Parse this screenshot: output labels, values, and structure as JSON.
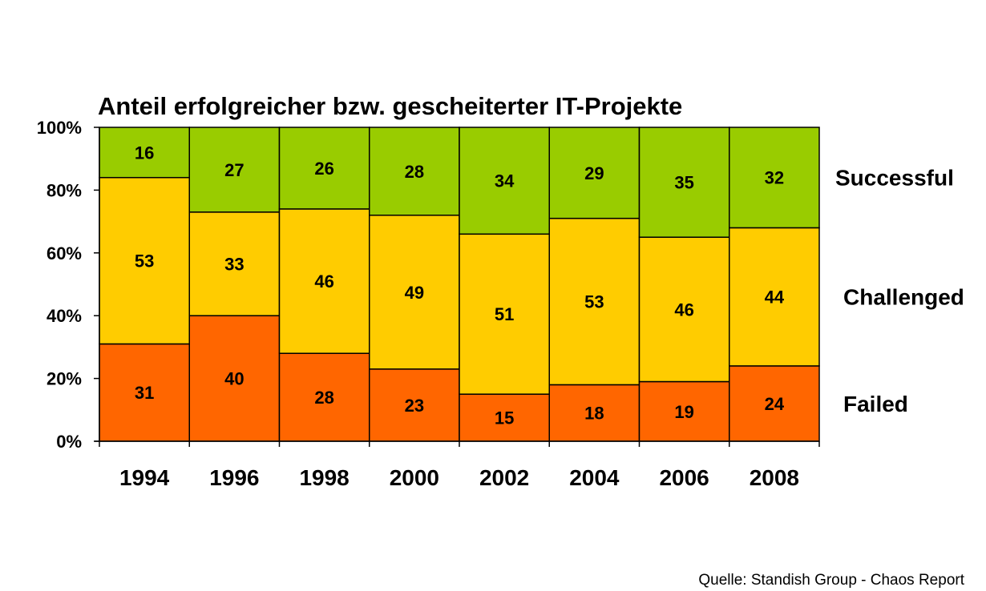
{
  "chart_data": {
    "type": "bar",
    "stacked": true,
    "title": "Anteil erfolgreicher bzw. gescheiterter IT-Projekte",
    "categories": [
      "1994",
      "1996",
      "1998",
      "2000",
      "2002",
      "2004",
      "2006",
      "2008"
    ],
    "series": [
      {
        "name": "Failed",
        "color": "#ff6600",
        "values": [
          31,
          40,
          28,
          23,
          15,
          18,
          19,
          24
        ]
      },
      {
        "name": "Challenged",
        "color": "#ffcc00",
        "values": [
          53,
          33,
          46,
          49,
          51,
          53,
          46,
          44
        ]
      },
      {
        "name": "Successful",
        "color": "#99cc00",
        "values": [
          16,
          27,
          26,
          28,
          34,
          29,
          35,
          32
        ]
      }
    ],
    "yticks": [
      "0%",
      "20%",
      "40%",
      "60%",
      "80%",
      "100%"
    ],
    "ylim": [
      0,
      100
    ],
    "grid": false,
    "legend": "series labels to the right of the bars"
  },
  "source": "Quelle: Standish Group - Chaos Report"
}
